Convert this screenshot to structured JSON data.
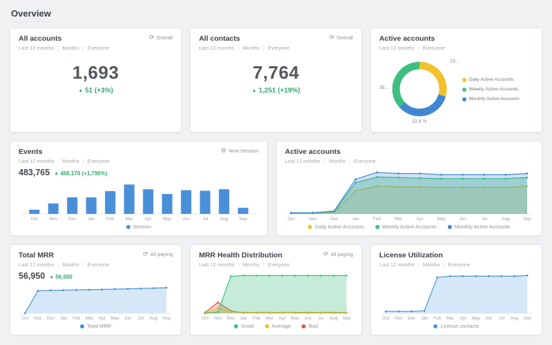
{
  "page": {
    "title": "Overview"
  },
  "icons": {
    "refresh": "⟳",
    "gear": "⚙",
    "delta_up": "▲"
  },
  "colors": {
    "blue": "#4a90d9",
    "green": "#3fbf7f",
    "yellow": "#f2c12e",
    "red": "#e0524e",
    "delta_green": "#2faa6e"
  },
  "cards": {
    "all_accounts": {
      "title": "All accounts",
      "filters": [
        "Last 12 months",
        "Months",
        "Everyone"
      ],
      "badge": "Overall",
      "value": "1,693",
      "delta": "51 (+3%)"
    },
    "all_contacts": {
      "title": "All contacts",
      "filters": [
        "Last 12 months",
        "Months",
        "Everyone"
      ],
      "badge": "Overall",
      "value": "7,764",
      "delta": "1,251 (+19%)"
    },
    "active_accounts_overview": {
      "title": "Active accounts",
      "filters": [
        "Last 12 months",
        "Everyone"
      ],
      "donut_labels": {
        "left": "36...",
        "top_right": "29...",
        "bottom": "33.8 %"
      },
      "legend": [
        {
          "label": "Daily Active Accounts",
          "color": "#f2c12e"
        },
        {
          "label": "Weekly Active Accounts",
          "color": "#3fbf7f"
        },
        {
          "label": "Monthly Active Accounts",
          "color": "#3f87d3"
        }
      ]
    },
    "events": {
      "title": "Events",
      "filters": [
        "Last 12 months",
        "Months",
        "Everyone"
      ],
      "badge": "New Session",
      "value": "483,765",
      "delta": "458,170 (+1,790%)",
      "legend": [
        {
          "label": "Session",
          "color": "#4a90d9"
        }
      ]
    },
    "active_accounts_trend": {
      "title": "Active accounts",
      "filters": [
        "Last 12 months",
        "Months",
        "Everyone"
      ],
      "legend": [
        {
          "label": "Daily Active Accounts",
          "color": "#f2c12e"
        },
        {
          "label": "Weekly Active Accounts",
          "color": "#3fbf7f"
        },
        {
          "label": "Monthly Active Accounts",
          "color": "#3f87d3"
        }
      ]
    },
    "total_mrr": {
      "title": "Total MRR",
      "filters": [
        "Last 12 months",
        "Months",
        "Everyone"
      ],
      "badge": "All paying",
      "value": "56,950",
      "delta": "56,950",
      "legend": [
        {
          "label": "Total MRR",
          "color": "#4a90d9"
        }
      ]
    },
    "mrr_health": {
      "title": "MRR Health Distribution",
      "filters": [
        "Last 12 months",
        "Months",
        "Everyone"
      ],
      "badge": "All paying",
      "legend": [
        {
          "label": "Good",
          "color": "#3fbf7f"
        },
        {
          "label": "Average",
          "color": "#f2c12e"
        },
        {
          "label": "Bad",
          "color": "#e0524e"
        }
      ]
    },
    "license_utilization": {
      "title": "License Utilization",
      "filters": [
        "Last 12 months",
        "Months",
        "Everyone"
      ],
      "legend": [
        {
          "label": "License contacts",
          "color": "#4a90d9"
        }
      ]
    }
  },
  "chart_data": [
    {
      "type": "pie",
      "title": "Active accounts",
      "series": [
        {
          "name": "Daily Active Accounts",
          "value": 29.4,
          "color": "#f2c12e"
        },
        {
          "name": "Monthly Active Accounts",
          "value": 33.8,
          "color": "#3f87d3"
        },
        {
          "name": "Weekly Active Accounts",
          "value": 36.8,
          "color": "#3fbf7f"
        }
      ],
      "visible_labels": [
        "36...",
        "29...",
        "33.8 %"
      ]
    },
    {
      "type": "bar",
      "title": "Events - Session",
      "categories": [
        "Oct",
        "Nov",
        "Dec",
        "Jan",
        "Feb",
        "Mar",
        "Apr",
        "May",
        "Jun",
        "Jul",
        "Aug",
        "Sep"
      ],
      "color": "#4a90d9",
      "values": [
        9000,
        22000,
        35000,
        35000,
        48000,
        62000,
        52000,
        42000,
        50000,
        49000,
        52000,
        13000
      ],
      "legend": [
        "Session"
      ]
    },
    {
      "type": "area",
      "title": "Active accounts",
      "categories": [
        "Oct",
        "Nov",
        "Dec",
        "Jan",
        "Feb",
        "Mar",
        "Apr",
        "May",
        "Jun",
        "Jul",
        "Aug",
        "Sep"
      ],
      "series": [
        {
          "name": "Daily Active Accounts",
          "color": "#f2c12e",
          "fill_opacity": 0.25,
          "values": [
            1,
            1,
            3,
            40,
            48,
            47,
            47,
            46,
            46,
            46,
            46,
            48
          ]
        },
        {
          "name": "Weekly Active Accounts",
          "color": "#3fbf7f",
          "fill_opacity": 0.35,
          "values": [
            1,
            2,
            4,
            54,
            64,
            63,
            62,
            61,
            61,
            61,
            61,
            63
          ]
        },
        {
          "name": "Monthly Active Accounts",
          "color": "#3f87d3",
          "fill_opacity": 0.25,
          "values": [
            2,
            2,
            5,
            60,
            72,
            70,
            70,
            68,
            68,
            68,
            68,
            70
          ]
        }
      ]
    },
    {
      "type": "area",
      "title": "Total MRR",
      "categories": [
        "Oct",
        "Nov",
        "Dec",
        "Jan",
        "Feb",
        "Mar",
        "Apr",
        "May",
        "Jun",
        "Jul",
        "Aug",
        "Sep"
      ],
      "series": [
        {
          "name": "Total MRR",
          "color": "#4a90d9",
          "fill": "#cfe4f6",
          "fill_opacity": 0.85,
          "values": [
            0,
            50000,
            51000,
            51500,
            52000,
            52500,
            53000,
            53800,
            54400,
            55200,
            56000,
            56950
          ]
        }
      ]
    },
    {
      "type": "area",
      "title": "MRR Health Distribution",
      "categories": [
        "Oct",
        "Nov",
        "Dec",
        "Jan",
        "Feb",
        "Mar",
        "Apr",
        "May",
        "Jun",
        "Jul",
        "Aug",
        "Sep"
      ],
      "series": [
        {
          "name": "Bad",
          "color": "#e0524e",
          "fill_opacity": 0.3,
          "values": [
            2,
            26,
            6,
            1,
            1,
            1,
            1,
            1,
            1,
            1,
            1,
            1
          ]
        },
        {
          "name": "Average",
          "color": "#f2c12e",
          "fill_opacity": 0.3,
          "values": [
            1,
            12,
            4,
            2,
            2,
            2,
            2,
            2,
            2,
            2,
            2,
            2
          ]
        },
        {
          "name": "Good",
          "color": "#3fbf7f",
          "fill_opacity": 0.3,
          "values": [
            0,
            3,
            88,
            90,
            90,
            90,
            90,
            90,
            90,
            90,
            90,
            90
          ]
        }
      ]
    },
    {
      "type": "area",
      "title": "License Utilization",
      "categories": [
        "Oct",
        "Nov",
        "Dec",
        "Jan",
        "Feb",
        "Mar",
        "Apr",
        "May",
        "Jun",
        "Jul",
        "Aug",
        "Sep"
      ],
      "series": [
        {
          "name": "License contacts",
          "color": "#4a90d9",
          "fill": "#cfe4f6",
          "fill_opacity": 0.85,
          "values": [
            3,
            3,
            3,
            4,
            58,
            60,
            60,
            60,
            60,
            60,
            60,
            61
          ]
        }
      ]
    }
  ]
}
